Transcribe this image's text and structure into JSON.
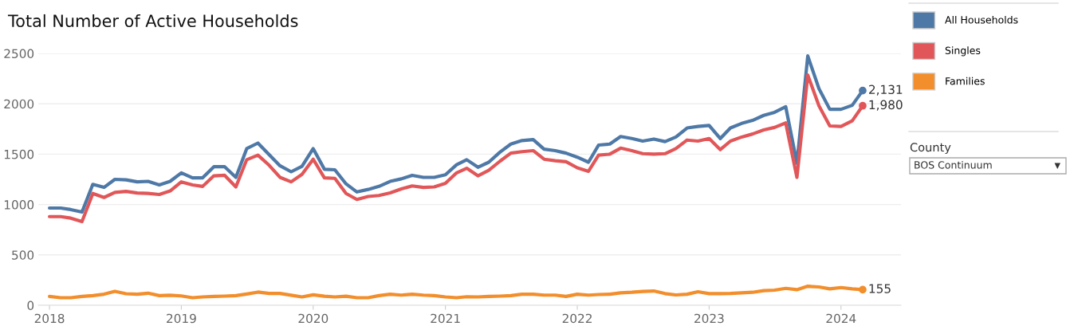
{
  "chart_data": {
    "type": "line",
    "title": "Total Number of Active Households",
    "x": [
      "2018-01",
      "2018-02",
      "2018-03",
      "2018-04",
      "2018-05",
      "2018-06",
      "2018-07",
      "2018-08",
      "2018-09",
      "2018-10",
      "2018-11",
      "2018-12",
      "2019-01",
      "2019-02",
      "2019-03",
      "2019-04",
      "2019-05",
      "2019-06",
      "2019-07",
      "2019-08",
      "2019-09",
      "2019-10",
      "2019-11",
      "2019-12",
      "2020-01",
      "2020-02",
      "2020-03",
      "2020-04",
      "2020-05",
      "2020-06",
      "2020-07",
      "2020-08",
      "2020-09",
      "2020-10",
      "2020-11",
      "2020-12",
      "2021-01",
      "2021-02",
      "2021-03",
      "2021-04",
      "2021-05",
      "2021-06",
      "2021-07",
      "2021-08",
      "2021-09",
      "2021-10",
      "2021-11",
      "2021-12",
      "2022-01",
      "2022-02",
      "2022-03",
      "2022-04",
      "2022-05",
      "2022-06",
      "2022-07",
      "2022-08",
      "2022-09",
      "2022-10",
      "2022-11",
      "2022-12",
      "2023-01",
      "2023-02",
      "2023-03",
      "2023-04",
      "2023-05",
      "2023-06",
      "2023-07",
      "2023-08",
      "2023-09",
      "2023-10",
      "2023-11",
      "2023-12",
      "2024-01",
      "2024-02",
      "2024-03"
    ],
    "series": [
      {
        "name": "All Households",
        "color": "#4e79a7",
        "values": [
          965,
          965,
          950,
          925,
          1200,
          1170,
          1250,
          1245,
          1225,
          1230,
          1195,
          1230,
          1315,
          1265,
          1265,
          1375,
          1375,
          1270,
          1555,
          1610,
          1495,
          1385,
          1325,
          1380,
          1555,
          1350,
          1345,
          1205,
          1125,
          1150,
          1180,
          1230,
          1255,
          1290,
          1270,
          1270,
          1295,
          1395,
          1445,
          1370,
          1420,
          1520,
          1600,
          1635,
          1645,
          1550,
          1535,
          1510,
          1470,
          1420,
          1590,
          1600,
          1675,
          1655,
          1630,
          1650,
          1625,
          1670,
          1760,
          1775,
          1785,
          1655,
          1760,
          1805,
          1835,
          1885,
          1915,
          1970,
          1410,
          2475,
          2150,
          1945,
          1945,
          1985,
          2131
        ],
        "value_labels": [
          null,
          null,
          null,
          null,
          null,
          null,
          null,
          null,
          null,
          null,
          null,
          null,
          null,
          null,
          null,
          null,
          null,
          null,
          null,
          null,
          null,
          null,
          null,
          null,
          null,
          null,
          null,
          null,
          null,
          null,
          null,
          null,
          null,
          null,
          null,
          null,
          null,
          null,
          null,
          null,
          null,
          null,
          null,
          null,
          null,
          null,
          null,
          null,
          null,
          null,
          null,
          null,
          null,
          null,
          null,
          null,
          null,
          null,
          null,
          null,
          null,
          null,
          null,
          null,
          null,
          null,
          null,
          null,
          null,
          null,
          null,
          null,
          null,
          null,
          "2,131"
        ]
      },
      {
        "name": "Singles",
        "color": "#e15759",
        "values": [
          880,
          880,
          865,
          830,
          1110,
          1070,
          1120,
          1130,
          1115,
          1110,
          1100,
          1135,
          1225,
          1195,
          1180,
          1285,
          1290,
          1175,
          1445,
          1490,
          1390,
          1270,
          1225,
          1300,
          1450,
          1265,
          1260,
          1110,
          1050,
          1080,
          1090,
          1115,
          1155,
          1185,
          1170,
          1175,
          1210,
          1315,
          1360,
          1285,
          1340,
          1430,
          1510,
          1525,
          1535,
          1450,
          1435,
          1425,
          1365,
          1330,
          1490,
          1500,
          1560,
          1535,
          1505,
          1500,
          1505,
          1555,
          1640,
          1630,
          1655,
          1545,
          1630,
          1670,
          1700,
          1740,
          1765,
          1810,
          1270,
          2285,
          1980,
          1780,
          1775,
          1830,
          1980
        ],
        "value_labels": [
          null,
          null,
          null,
          null,
          null,
          null,
          null,
          null,
          null,
          null,
          null,
          null,
          null,
          null,
          null,
          null,
          null,
          null,
          null,
          null,
          null,
          null,
          null,
          null,
          null,
          null,
          null,
          null,
          null,
          null,
          null,
          null,
          null,
          null,
          null,
          null,
          null,
          null,
          null,
          null,
          null,
          null,
          null,
          null,
          null,
          null,
          null,
          null,
          null,
          null,
          null,
          null,
          null,
          null,
          null,
          null,
          null,
          null,
          null,
          null,
          null,
          null,
          null,
          null,
          null,
          null,
          null,
          null,
          null,
          null,
          null,
          null,
          null,
          null,
          "1,980"
        ]
      },
      {
        "name": "Families",
        "color": "#f28e2b",
        "values": [
          88,
          75,
          75,
          88,
          96,
          110,
          139,
          115,
          110,
          120,
          96,
          100,
          93,
          75,
          83,
          88,
          91,
          96,
          112,
          131,
          118,
          118,
          100,
          83,
          104,
          90,
          83,
          90,
          75,
          75,
          96,
          110,
          101,
          110,
          101,
          96,
          83,
          75,
          85,
          83,
          88,
          91,
          96,
          110,
          110,
          101,
          101,
          88,
          110,
          101,
          107,
          110,
          124,
          129,
          137,
          142,
          116,
          103,
          110,
          134,
          116,
          116,
          118,
          124,
          129,
          145,
          150,
          168,
          155,
          189,
          182,
          163,
          176,
          163,
          155
        ],
        "value_labels": [
          null,
          null,
          null,
          null,
          null,
          null,
          null,
          null,
          null,
          null,
          null,
          null,
          null,
          null,
          null,
          null,
          null,
          null,
          null,
          null,
          null,
          null,
          null,
          null,
          null,
          null,
          null,
          null,
          null,
          null,
          null,
          null,
          null,
          null,
          null,
          null,
          null,
          null,
          null,
          null,
          null,
          null,
          null,
          null,
          null,
          null,
          null,
          null,
          null,
          null,
          null,
          null,
          null,
          null,
          null,
          null,
          null,
          null,
          null,
          null,
          null,
          null,
          null,
          null,
          null,
          null,
          null,
          null,
          null,
          null,
          null,
          null,
          null,
          null,
          "155"
        ]
      }
    ],
    "xlim": [
      "2017-12-01",
      "2024-06-15"
    ],
    "xticks": [
      {
        "value": "2018-01-01",
        "label": "2018"
      },
      {
        "value": "2019-01-01",
        "label": "2019"
      },
      {
        "value": "2020-01-01",
        "label": "2020"
      },
      {
        "value": "2021-01-01",
        "label": "2021"
      },
      {
        "value": "2022-01-01",
        "label": "2022"
      },
      {
        "value": "2023-01-01",
        "label": "2023"
      },
      {
        "value": "2024-01-01",
        "label": "2024"
      }
    ],
    "ylim": [
      0,
      2500
    ],
    "yticks": [
      0,
      500,
      1000,
      1500,
      2000,
      2500
    ],
    "grid": "y",
    "legend": "top right",
    "marker": "none",
    "line_style": "solid",
    "annotations": [
      "County",
      "BOS Continuum",
      "▼"
    ]
  }
}
